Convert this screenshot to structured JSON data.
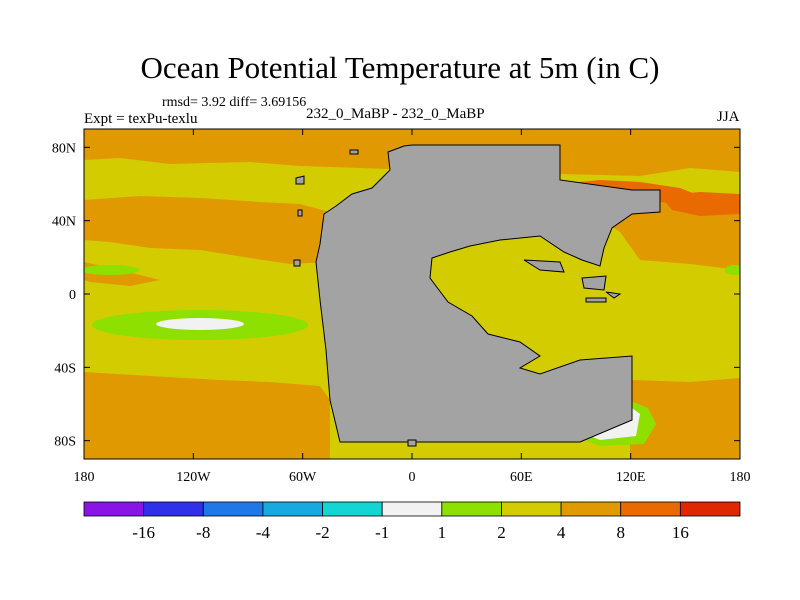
{
  "header": {
    "title": "Ocean Potential Temperature at 5m (in C)",
    "stats": "rmsd= 3.92 diff= 3.69156",
    "left_label": "Expt = texPu-texlu",
    "center_label": "232_0_MaBP - 232_0_MaBP",
    "right_label": "JJA"
  },
  "map": {
    "x_tick_labels": [
      "180",
      "120W",
      "60W",
      "0",
      "60E",
      "120E",
      "180"
    ],
    "y_tick_labels": [
      "80N",
      "40N",
      "0",
      "40S",
      "80S"
    ],
    "land_color": "#a3a3a3",
    "ocean_base_color": "#d3cc00"
  },
  "colorbar": {
    "labels": [
      "-16",
      "-8",
      "-4",
      "-2",
      "-1",
      "1",
      "2",
      "4",
      "8",
      "16"
    ],
    "colors": [
      "#8a14e6",
      "#3030e8",
      "#1e78e8",
      "#18a8e2",
      "#14d4d4",
      "#f2f2f2",
      "#8ee000",
      "#d3cc00",
      "#e09a00",
      "#e86a00",
      "#e02800"
    ]
  }
}
